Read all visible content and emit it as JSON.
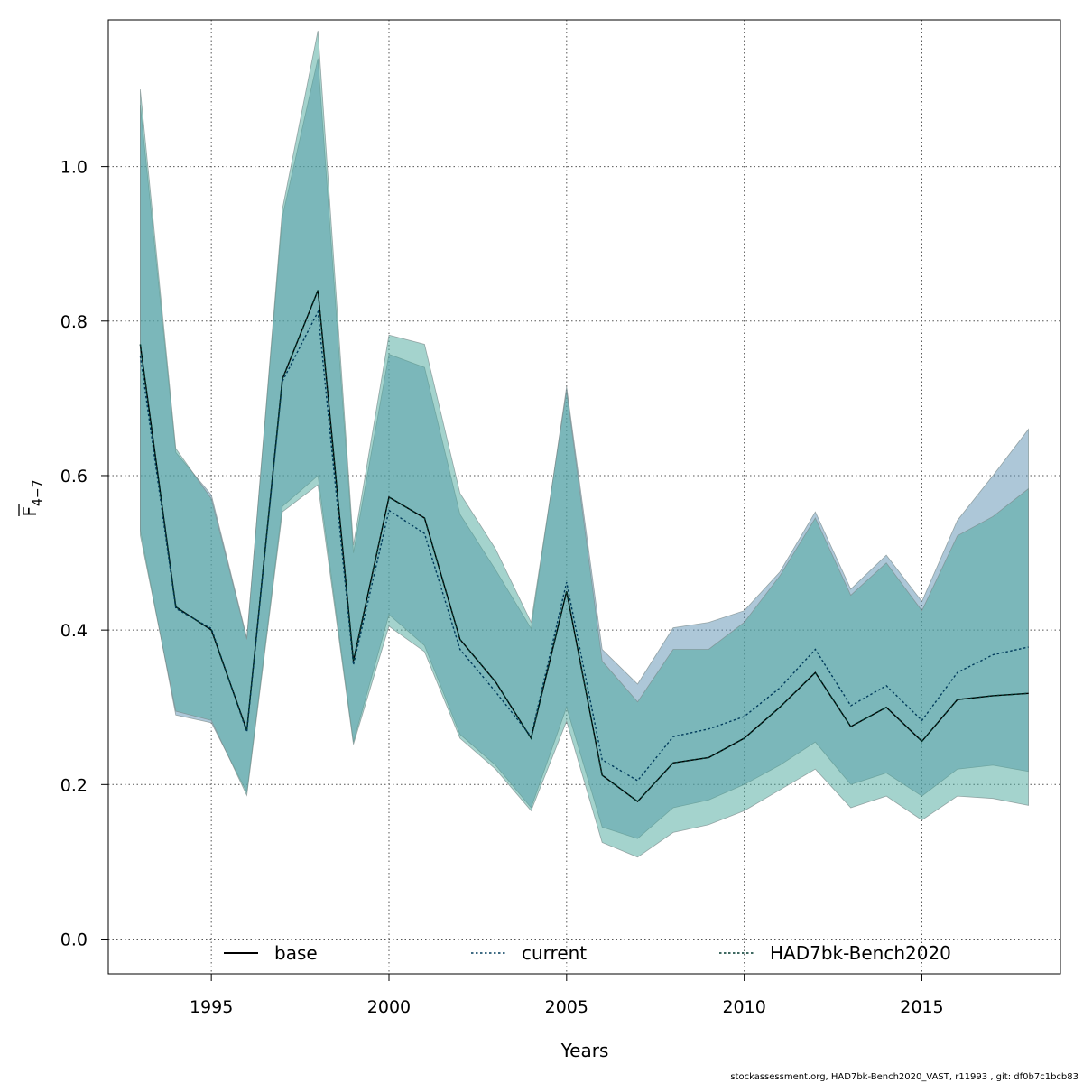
{
  "chart_data": {
    "type": "line",
    "xlabel": "Years",
    "ylabel_main": "F",
    "ylabel_sub": "4−7",
    "footer": "stockassessment.org, HAD7bk-Bench2020_VAST, r11993 , git: df0b7c1bcb83",
    "xlim": [
      1992.1,
      2018.9
    ],
    "ylim": [
      -0.045,
      1.19
    ],
    "x_ticks": [
      1995,
      2000,
      2005,
      2010,
      2015
    ],
    "y_ticks": [
      0.0,
      0.2,
      0.4,
      0.6,
      0.8,
      1.0
    ],
    "y_tick_labels": [
      "0.0",
      "0.2",
      "0.4",
      "0.6",
      "0.8",
      "1.0"
    ],
    "grid": true,
    "legend_position": "bottom",
    "x": [
      1993,
      1994,
      1995,
      1996,
      1997,
      1998,
      1999,
      2000,
      2001,
      2002,
      2003,
      2004,
      2005,
      2006,
      2007,
      2008,
      2009,
      2010,
      2011,
      2012,
      2013,
      2014,
      2015,
      2016,
      2017,
      2018
    ],
    "bands": [
      {
        "color": "#5b8fb2",
        "lower": [
          0.53,
          0.29,
          0.28,
          0.19,
          0.56,
          0.6,
          0.255,
          0.42,
          0.38,
          0.265,
          0.225,
          0.17,
          0.3,
          0.145,
          0.13,
          0.17,
          0.18,
          0.2,
          0.225,
          0.255,
          0.2,
          0.215,
          0.185,
          0.22,
          0.225,
          0.217
        ],
        "upper": [
          1.08,
          0.63,
          0.575,
          0.39,
          0.935,
          1.14,
          0.5,
          0.757,
          0.74,
          0.55,
          0.478,
          0.402,
          0.715,
          0.375,
          0.33,
          0.403,
          0.41,
          0.425,
          0.475,
          0.553,
          0.453,
          0.497,
          0.437,
          0.542,
          0.6,
          0.66
        ]
      },
      {
        "color": "#4aa89c",
        "lower": [
          0.523,
          0.295,
          0.283,
          0.186,
          0.553,
          0.588,
          0.252,
          0.405,
          0.372,
          0.26,
          0.22,
          0.166,
          0.282,
          0.125,
          0.106,
          0.138,
          0.148,
          0.166,
          0.193,
          0.22,
          0.17,
          0.185,
          0.154,
          0.185,
          0.182,
          0.173
        ],
        "upper": [
          1.1,
          0.635,
          0.57,
          0.388,
          0.945,
          1.176,
          0.51,
          0.782,
          0.77,
          0.577,
          0.505,
          0.41,
          0.71,
          0.36,
          0.307,
          0.375,
          0.375,
          0.41,
          0.47,
          0.545,
          0.445,
          0.487,
          0.425,
          0.522,
          0.547,
          0.583
        ]
      }
    ],
    "series": [
      {
        "name": "base",
        "color": "#000000",
        "dash": "solid",
        "values": [
          0.77,
          0.43,
          0.4,
          0.27,
          0.725,
          0.84,
          0.36,
          0.572,
          0.545,
          0.388,
          0.333,
          0.26,
          0.45,
          0.212,
          0.178,
          0.228,
          0.235,
          0.26,
          0.3,
          0.345,
          0.275,
          0.3,
          0.256,
          0.31,
          0.315,
          0.318
        ]
      },
      {
        "name": "current",
        "color": "#003b5c",
        "dash": "dotted",
        "values": [
          0.755,
          0.428,
          0.402,
          0.268,
          0.722,
          0.812,
          0.355,
          0.555,
          0.525,
          0.375,
          0.32,
          0.262,
          0.462,
          0.232,
          0.205,
          0.262,
          0.272,
          0.288,
          0.325,
          0.375,
          0.302,
          0.328,
          0.283,
          0.345,
          0.368,
          0.378
        ]
      },
      {
        "name": "HAD7bk-Bench2020",
        "color": "#00382f",
        "dash": "dotted",
        "values": [
          0.77,
          0.43,
          0.4,
          0.27,
          0.725,
          0.84,
          0.36,
          0.572,
          0.545,
          0.388,
          0.333,
          0.26,
          0.45,
          0.212,
          0.178,
          0.228,
          0.235,
          0.26,
          0.3,
          0.345,
          0.275,
          0.3,
          0.256,
          0.31,
          0.315,
          0.318
        ]
      }
    ]
  }
}
